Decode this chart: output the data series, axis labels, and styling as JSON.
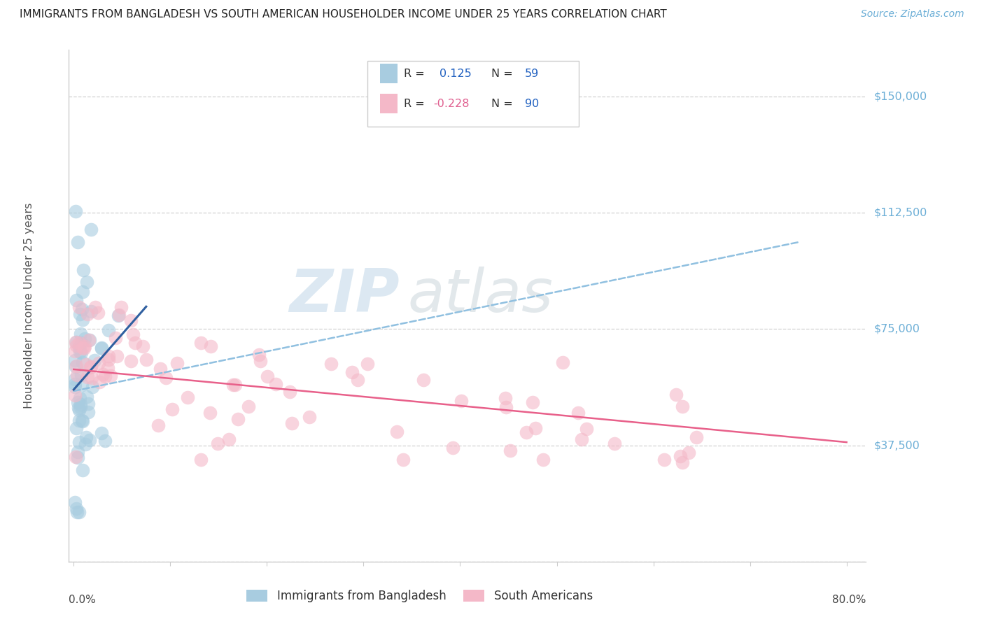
{
  "title": "IMMIGRANTS FROM BANGLADESH VS SOUTH AMERICAN HOUSEHOLDER INCOME UNDER 25 YEARS CORRELATION CHART",
  "source": "Source: ZipAtlas.com",
  "ylabel": "Householder Income Under 25 years",
  "legend1_r": "0.125",
  "legend1_n": "59",
  "legend2_r": "-0.228",
  "legend2_n": "90",
  "ytick_vals": [
    0,
    37500,
    75000,
    112500,
    150000
  ],
  "ytick_labels": [
    "",
    "$37,500",
    "$75,000",
    "$112,500",
    "$150,000"
  ],
  "xlim": [
    -0.005,
    0.82
  ],
  "ylim": [
    0,
    165000
  ],
  "blue_color": "#a8cce0",
  "pink_color": "#f4b8c8",
  "blue_line_color": "#3060a0",
  "pink_line_color": "#e8608a",
  "dashed_line_color": "#90c0e0",
  "bg_color": "#ffffff",
  "grid_color": "#cccccc",
  "title_color": "#222222",
  "source_color": "#6baed6",
  "legend_text_color": "#333333",
  "legend_val_color": "#2060c0",
  "legend_r2_color": "#e06090",
  "ylab_color": "#555555",
  "xtick_label_color": "#444444",
  "watermark_zip_color": "#c5daea",
  "watermark_atlas_color": "#c0ccd4"
}
